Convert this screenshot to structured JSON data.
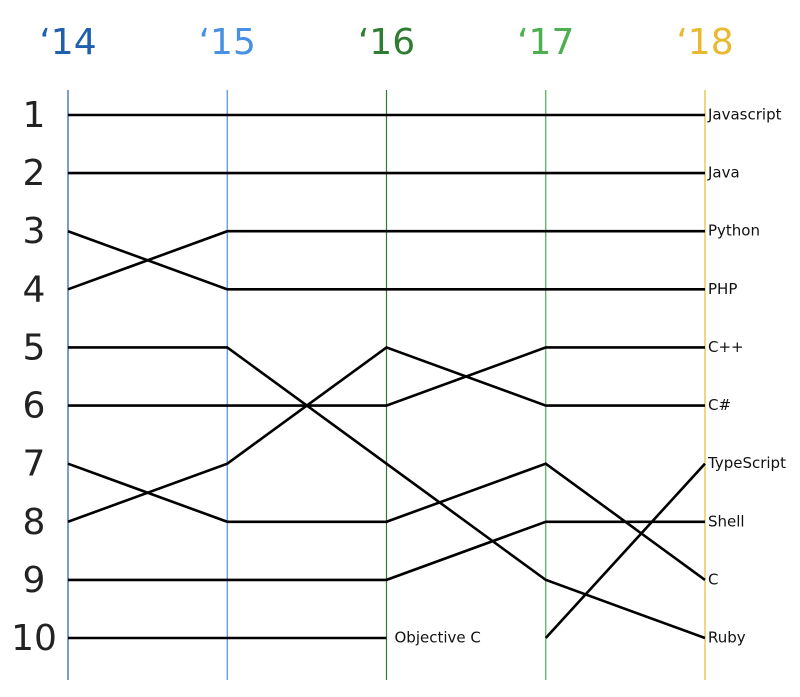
{
  "chart_data": {
    "type": "bump",
    "categories": [
      "‘14",
      "‘15",
      "‘16",
      "‘17",
      "‘18"
    ],
    "category_colors": [
      "#1f5fae",
      "#4a90e2",
      "#2e7d32",
      "#4caf50",
      "#e8b931"
    ],
    "ylim": [
      1,
      10
    ],
    "yticks": [
      1,
      2,
      3,
      4,
      5,
      6,
      7,
      8,
      9,
      10
    ],
    "y_inverted": true,
    "series": [
      {
        "name": "Javascript",
        "color": "#000000",
        "values": [
          1,
          1,
          1,
          1,
          1
        ]
      },
      {
        "name": "Java",
        "color": "#000000",
        "values": [
          2,
          2,
          2,
          2,
          2
        ]
      },
      {
        "name": "Python",
        "color": "#000000",
        "values": [
          4,
          3,
          3,
          3,
          3
        ]
      },
      {
        "name": "PHP",
        "color": "#000000",
        "values": [
          3,
          4,
          4,
          4,
          4
        ]
      },
      {
        "name": "C++",
        "color": "#000000",
        "values": [
          6,
          6,
          6,
          5,
          5
        ]
      },
      {
        "name": "C#",
        "color": "#000000",
        "values": [
          8,
          7,
          5,
          6,
          6
        ]
      },
      {
        "name": "TypeScript",
        "color": "#000000",
        "values": [
          null,
          null,
          null,
          10,
          7
        ]
      },
      {
        "name": "Shell",
        "color": "#000000",
        "values": [
          9,
          9,
          9,
          8,
          8
        ]
      },
      {
        "name": "C",
        "color": "#000000",
        "values": [
          7,
          8,
          8,
          7,
          9
        ]
      },
      {
        "name": "Ruby",
        "color": "#000000",
        "values": [
          5,
          5,
          7,
          9,
          10
        ]
      },
      {
        "name": "Objective C",
        "color": "#000000",
        "values": [
          10,
          10,
          10,
          null,
          null
        ]
      }
    ]
  }
}
